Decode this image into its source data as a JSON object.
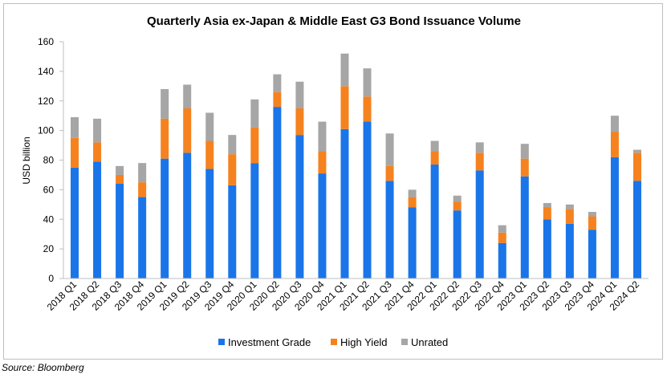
{
  "source_note": "Source: Bloomberg",
  "chart_data": {
    "type": "bar",
    "stacked": true,
    "title": "Quarterly Asia ex-Japan & Middle East G3 Bond Issuance Volume",
    "xlabel": "",
    "ylabel": "USD billion",
    "ylim": [
      0,
      160
    ],
    "yticks": [
      0,
      20,
      40,
      60,
      80,
      100,
      120,
      140,
      160
    ],
    "grid": false,
    "legend_position": "bottom",
    "categories": [
      "2018 Q1",
      "2018 Q2",
      "2018 Q3",
      "2018 Q4",
      "2019 Q1",
      "2019 Q2",
      "2019 Q3",
      "2019 Q4",
      "2020 Q1",
      "2020 Q2",
      "2020 Q3",
      "2020 Q4",
      "2021 Q1",
      "2021 Q2",
      "2021 Q3",
      "2021 Q4",
      "2022 Q1",
      "2022 Q2",
      "2022 Q3",
      "2022 Q4",
      "2023 Q1",
      "2023 Q2",
      "2023 Q3",
      "2023 Q4",
      "2024 Q1",
      "2024 Q2"
    ],
    "series": [
      {
        "name": "Investment Grade",
        "color": "#1a75e8",
        "values": [
          75,
          79,
          64,
          55,
          81,
          85,
          74,
          63,
          78,
          116,
          97,
          71,
          101,
          106,
          66,
          48,
          77,
          46,
          73,
          24,
          69,
          40,
          37,
          33,
          82,
          66
        ]
      },
      {
        "name": "High Yield",
        "color": "#f5821f",
        "values": [
          20,
          13,
          6,
          10,
          27,
          30,
          19,
          21,
          24,
          10,
          18,
          15,
          29,
          17,
          10,
          7,
          9,
          6,
          12,
          7,
          12,
          8,
          10,
          9,
          17,
          19
        ]
      },
      {
        "name": "Unrated",
        "color": "#a6a6a6",
        "values": [
          14,
          16,
          6,
          13,
          20,
          16,
          19,
          13,
          19,
          12,
          18,
          20,
          22,
          19,
          22,
          5,
          7,
          4,
          7,
          5,
          10,
          3,
          3,
          3,
          11,
          2
        ]
      }
    ]
  }
}
